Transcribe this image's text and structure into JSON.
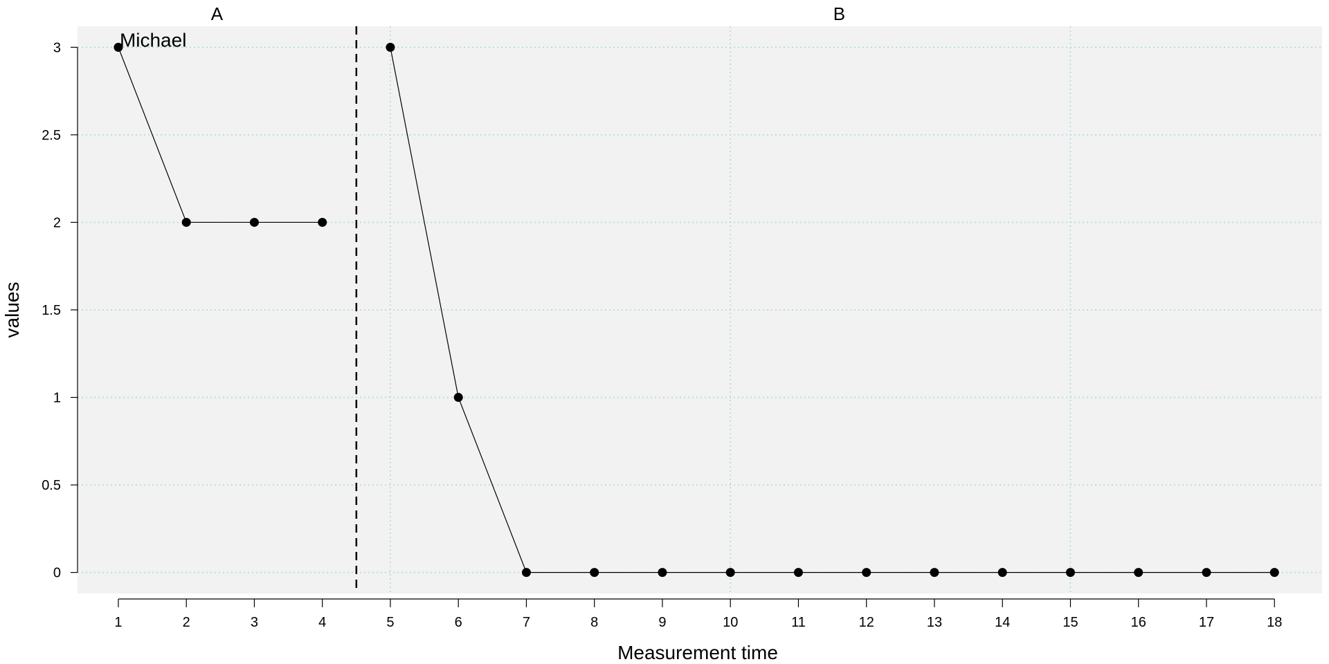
{
  "chart_data": {
    "type": "line",
    "xlabel": "Measurement time",
    "ylabel": "values",
    "xlim": [
      0.4,
      18.7
    ],
    "ylim": [
      -0.12,
      3.12
    ],
    "x_ticks": [
      1,
      2,
      3,
      4,
      5,
      6,
      7,
      8,
      9,
      10,
      11,
      12,
      13,
      14,
      15,
      16,
      17,
      18
    ],
    "y_ticks": [
      0,
      0.5,
      1,
      1.5,
      2,
      2.5,
      3
    ],
    "y_tick_labels": [
      "0",
      "0.5",
      "1",
      "1.5",
      "2",
      "2.5",
      "3"
    ],
    "vertical_grid_x": [
      5,
      10,
      15
    ],
    "phase_boundary": 4.5,
    "phases": [
      {
        "label": "A",
        "x": [
          1,
          2,
          3,
          4
        ],
        "values": [
          3,
          2,
          2,
          2
        ]
      },
      {
        "label": "B",
        "x": [
          5,
          6,
          7,
          8,
          9,
          10,
          11,
          12,
          13,
          14,
          15,
          16,
          17,
          18
        ],
        "values": [
          3,
          1,
          0,
          0,
          0,
          0,
          0,
          0,
          0,
          0,
          0,
          0,
          0,
          0
        ]
      }
    ],
    "case_label": "Michael",
    "grid": true,
    "colors": {
      "panel_background": "#f2f2f2",
      "grid": "#a8d8dc",
      "line": "#000000",
      "points": "#000000"
    }
  }
}
